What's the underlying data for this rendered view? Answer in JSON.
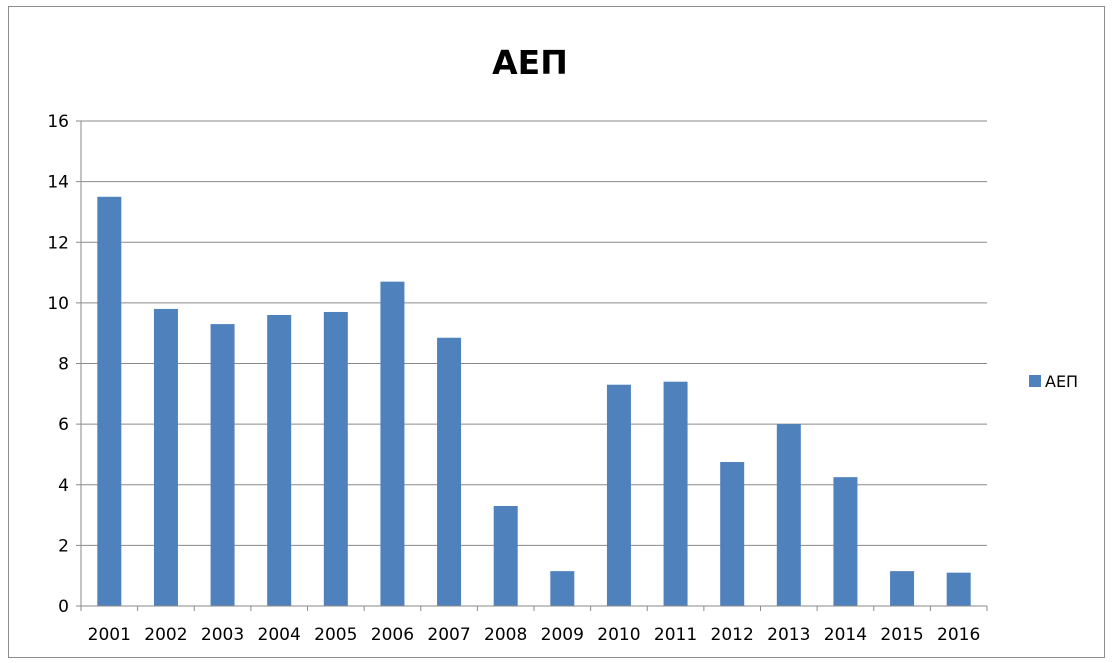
{
  "chart_data": {
    "type": "bar",
    "title": "ΑΕΠ",
    "xlabel": "",
    "ylabel": "",
    "categories": [
      "2001",
      "2002",
      "2003",
      "2004",
      "2005",
      "2006",
      "2007",
      "2008",
      "2009",
      "2010",
      "2011",
      "2012",
      "2013",
      "2014",
      "2015",
      "2016"
    ],
    "series": [
      {
        "name": "ΑΕΠ",
        "color": "#4f81bd",
        "values": [
          13.5,
          9.8,
          9.3,
          9.6,
          9.7,
          10.7,
          8.85,
          3.3,
          1.15,
          7.3,
          7.4,
          4.75,
          6.0,
          4.25,
          1.15,
          1.1
        ]
      }
    ],
    "ylim": [
      0,
      16
    ],
    "yticks": [
      0,
      2,
      4,
      6,
      8,
      10,
      12,
      14,
      16
    ],
    "grid": true,
    "legend": "right"
  }
}
